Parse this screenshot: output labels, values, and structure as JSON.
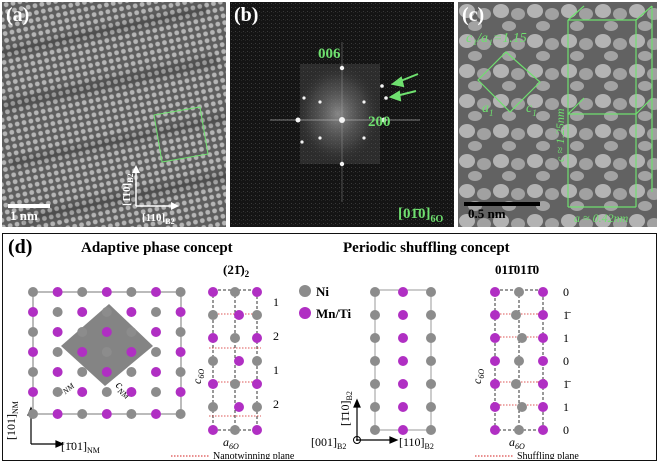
{
  "panel_a": {
    "label": "(a)",
    "scale_bar": "1 nm",
    "dir_vertical": "[1̄10]",
    "dir_vertical_sub": "B2",
    "dir_horizontal": "[110]",
    "dir_horizontal_sub": "B2"
  },
  "panel_b": {
    "label": "(b)",
    "spot_006": "006",
    "spot_200": "200",
    "zone_axis": "[01̄0]",
    "zone_axis_sub": "6O"
  },
  "panel_c": {
    "label": "(c)",
    "ratio": "c₁/a₁=1.15",
    "a1": "a",
    "a1_sub": "1",
    "c1": "c",
    "c1_sub": "1",
    "c_length": "c ≈ 1.25nm",
    "a_length": "a ≈ 0.42nm",
    "scale_bar": "0.5 nm"
  },
  "panel_d": {
    "label": "(d)",
    "adaptive_title": "Adaptive phase concept",
    "shuffling_title": "Periodic shuffling concept",
    "stacking_adaptive": "(21̄)",
    "stacking_adaptive_sub": "2",
    "stacking_shuffle": "011̄011̄0",
    "legend_ni": "Ni",
    "legend_mnti": "Mn/Ti",
    "ni_color": "#8c8c8c",
    "mnti_color": "#b02fc3",
    "nm_dir_v": "[101]",
    "nm_dir_v_sub": "NM",
    "nm_dir_h": "[1̄01]",
    "nm_dir_h_sub": "NM",
    "a_nm": "a",
    "a_nm_sub": "NM",
    "c_nm": "c",
    "c_nm_sub": "NM",
    "c_6o": "c",
    "c_6o_sub": "6O",
    "a_6o": "a",
    "a_6o_sub": "6O",
    "adaptive_layers": [
      "1",
      "2",
      "1",
      "2"
    ],
    "shuffle_layers": [
      "0",
      "1̄",
      "1",
      "0",
      "1̄",
      "1",
      "0"
    ],
    "b2_dir_v": "[1̄10]",
    "b2_dir_v_sub": "B2",
    "b2_dir_001": "[001]",
    "b2_dir_001_sub": "B2",
    "b2_dir_110": "[110]",
    "b2_dir_110_sub": "B2",
    "nanotwinning_legend": "Nanotwinning plane",
    "shuffling_legend": "Shuffling plane"
  }
}
